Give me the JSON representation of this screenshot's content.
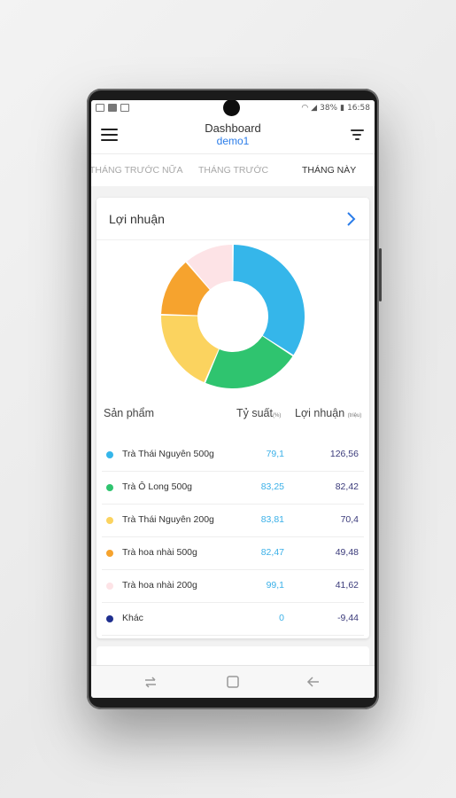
{
  "status": {
    "battery": "38%",
    "time": "16:58"
  },
  "header": {
    "title": "Dashboard",
    "subtitle": "demo1"
  },
  "tabs": [
    "THÁNG TRƯỚC NỮA",
    "THÁNG TRƯỚC",
    "THÁNG NÀY"
  ],
  "active_tab": "THÁNG NÀY",
  "card": {
    "title": "Lợi nhuận"
  },
  "table": {
    "col_product": "Sản phẩm",
    "col_rate": "Tỷ suất",
    "col_rate_unit": "(%)",
    "col_profit": "Lợi nhuận",
    "col_profit_unit": "(triệu)",
    "rows": [
      {
        "name": "Trà Thái Nguyên 500g",
        "rate": "79,1",
        "profit": "126,56",
        "color": "#35b6ea"
      },
      {
        "name": "Trà Ô Long 500g",
        "rate": "83,25",
        "profit": "82,42",
        "color": "#2fc46f"
      },
      {
        "name": "Trà Thái Nguyên 200g",
        "rate": "83,81",
        "profit": "70,4",
        "color": "#fbd35f"
      },
      {
        "name": "Trà hoa nhài 500g",
        "rate": "82,47",
        "profit": "49,48",
        "color": "#f6a32e"
      },
      {
        "name": "Trà hoa nhài 200g",
        "rate": "99,1",
        "profit": "41,62",
        "color": "#fde3e6"
      },
      {
        "name": "Khác",
        "rate": "0",
        "profit": "-9,44",
        "color": "#1f2f8f"
      }
    ]
  },
  "chart_data": {
    "type": "pie",
    "categories": [
      "Trà Thái Nguyên 500g",
      "Trà Ô Long 500g",
      "Trà Thái Nguyên 200g",
      "Trà hoa nhài 500g",
      "Trà hoa nhài 200g"
    ],
    "values": [
      126.56,
      82.42,
      70.4,
      49.48,
      41.62
    ],
    "colors": [
      "#35b6ea",
      "#2fc46f",
      "#fbd35f",
      "#f6a32e",
      "#fde3e6"
    ],
    "title": ""
  },
  "icons": {
    "menu": "hamburger-icon",
    "filter": "filter-icon",
    "chevron": "chevron-right-icon",
    "nav_recents": "recents-icon",
    "nav_home": "home-icon",
    "nav_back": "back-icon"
  }
}
